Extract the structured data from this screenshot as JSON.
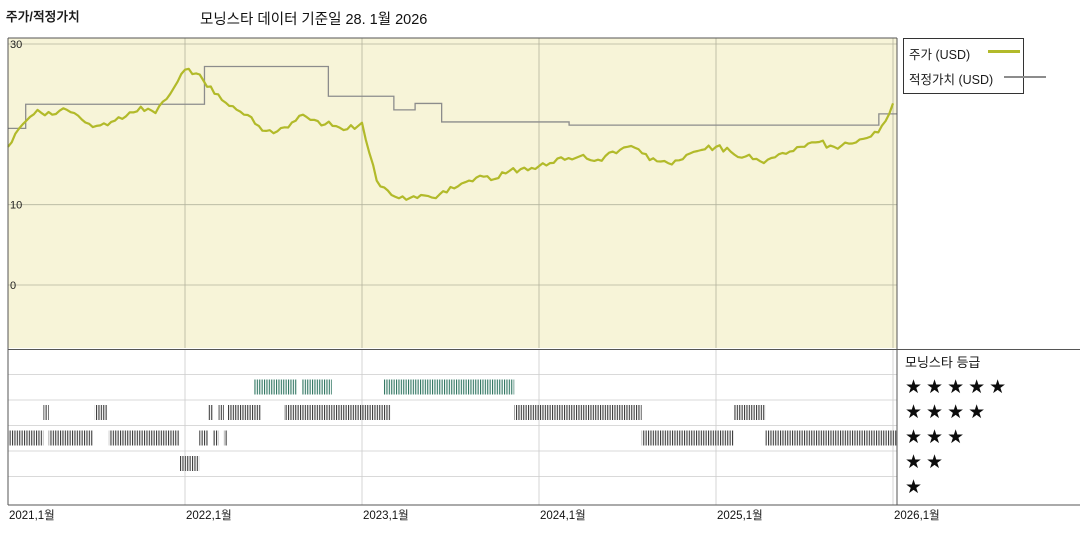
{
  "rating_legend": {
    "title": "모닝스타 등급",
    "rows": [
      "★★★★★",
      "★★★★",
      "★★★",
      "★★",
      "★"
    ]
  },
  "chart_data": {
    "type": "line",
    "panel_label": "주가/적정가치",
    "title": "모닝스타 데이터 기준일 28. 1월 2026",
    "ylim": [
      0,
      30
    ],
    "x_range": [
      2021.0,
      2026.02
    ],
    "grid": true,
    "legend_position": "top-right",
    "colors": {
      "plot_bg": "#f7f4d8",
      "grid": "#b3b39e",
      "panel_grid": "#cccccc",
      "border": "#555555",
      "rating_dark": "#3c3c3c",
      "rating_green": "#2f7561"
    },
    "y_ticks": [
      {
        "v": 30,
        "label": "30"
      },
      {
        "v": 10,
        "label": "10"
      },
      {
        "v": 0,
        "label": "0"
      }
    ],
    "x_ticks": [
      {
        "t": 2021.0,
        "label": "2021,1월"
      },
      {
        "t": 2022.0,
        "label": "2022,1월"
      },
      {
        "t": 2023.0,
        "label": "2023,1월"
      },
      {
        "t": 2024.0,
        "label": "2024,1월"
      },
      {
        "t": 2025.0,
        "label": "2025,1월"
      },
      {
        "t": 2026.0,
        "label": "2026,1월"
      }
    ],
    "legend": [
      {
        "label": "주가 (USD)",
        "color": "#b2ba2a",
        "width": 2.2
      },
      {
        "label": "적정가치 (USD)",
        "color": "#8c8c8c",
        "width": 1.3
      }
    ],
    "price_series": {
      "name": "주가 (USD)",
      "start": "2021-01",
      "interval": "monthly",
      "values": [
        17.2,
        20.0,
        21.8,
        21.2,
        21.8,
        20.6,
        19.8,
        20.3,
        21.0,
        22.2,
        21.4,
        23.8,
        26.8,
        26.2,
        23.8,
        22.3,
        21.2,
        19.8,
        18.9,
        19.6,
        21.2,
        20.4,
        19.8,
        19.4,
        20.2,
        13.0,
        11.2,
        10.6,
        11.2,
        10.8,
        12.2,
        12.8,
        13.6,
        13.2,
        14.2,
        14.6,
        14.8,
        15.2,
        15.8,
        16.2,
        15.6,
        16.6,
        17.2,
        16.4,
        15.4,
        15.0,
        16.2,
        16.8,
        17.2,
        16.6,
        16.0,
        15.4,
        15.9,
        16.6,
        17.2,
        17.8,
        17.2,
        17.6,
        18.2,
        19.0,
        22.6
      ]
    },
    "fair_value_steps": [
      {
        "t": 2021.0,
        "v": 19.5
      },
      {
        "t": 2021.1,
        "v": 22.5
      },
      {
        "t": 2022.11,
        "v": 27.2
      },
      {
        "t": 2022.81,
        "v": 23.5
      },
      {
        "t": 2023.18,
        "v": 21.8
      },
      {
        "t": 2023.3,
        "v": 22.6
      },
      {
        "t": 2023.45,
        "v": 20.3
      },
      {
        "t": 2024.17,
        "v": 19.9
      },
      {
        "t": 2025.92,
        "v": 21.3
      }
    ],
    "ratings_timeline": {
      "rows": [
        5,
        4,
        3,
        2,
        1
      ],
      "intervals": [
        {
          "stars": 5,
          "start": 2022.39,
          "end": 2022.63
        },
        {
          "stars": 5,
          "start": 2022.66,
          "end": 2022.83
        },
        {
          "stars": 5,
          "start": 2023.12,
          "end": 2023.86
        },
        {
          "stars": 4,
          "start": 2021.2,
          "end": 2021.23
        },
        {
          "stars": 4,
          "start": 2021.49,
          "end": 2021.56
        },
        {
          "stars": 4,
          "start": 2022.13,
          "end": 2022.16
        },
        {
          "stars": 4,
          "start": 2022.19,
          "end": 2022.22
        },
        {
          "stars": 4,
          "start": 2022.24,
          "end": 2022.43
        },
        {
          "stars": 4,
          "start": 2022.56,
          "end": 2022.83
        },
        {
          "stars": 4,
          "start": 2022.83,
          "end": 2023.16
        },
        {
          "stars": 4,
          "start": 2023.86,
          "end": 2024.58
        },
        {
          "stars": 4,
          "start": 2025.1,
          "end": 2025.28
        },
        {
          "stars": 3,
          "start": 2021.0,
          "end": 2021.2
        },
        {
          "stars": 3,
          "start": 2021.23,
          "end": 2021.48
        },
        {
          "stars": 3,
          "start": 2021.57,
          "end": 2021.97
        },
        {
          "stars": 3,
          "start": 2022.08,
          "end": 2022.13
        },
        {
          "stars": 3,
          "start": 2022.16,
          "end": 2022.19
        },
        {
          "stars": 3,
          "start": 2022.22,
          "end": 2022.24
        },
        {
          "stars": 3,
          "start": 2024.58,
          "end": 2025.1
        },
        {
          "stars": 3,
          "start": 2025.28,
          "end": 2026.02
        },
        {
          "stars": 2,
          "start": 2021.97,
          "end": 2022.08
        }
      ]
    }
  }
}
